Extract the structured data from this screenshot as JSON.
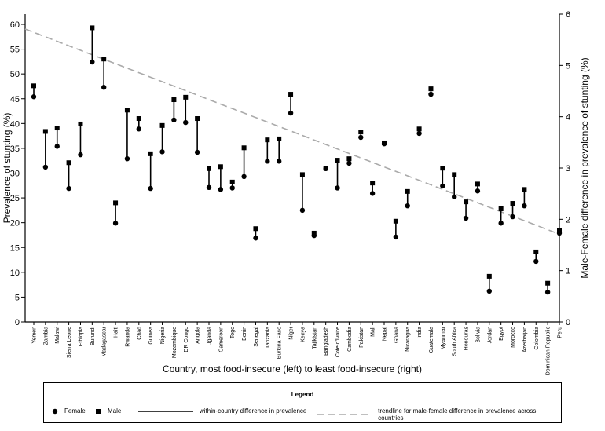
{
  "chart_data": {
    "type": "dot-range",
    "xlabel": "Country, most food-insecure (left) to least food-insecure (right)",
    "ylabel": "Prevalence of stunting (%)",
    "y2label": "Male-Female difference in prevalence of stunting (%)",
    "ylim": [
      0,
      60
    ],
    "y2lim": [
      0,
      6
    ],
    "yticks": [
      0,
      5,
      10,
      15,
      20,
      25,
      30,
      35,
      40,
      45,
      50,
      55,
      60
    ],
    "y2ticks": [
      0,
      1,
      2,
      3,
      4,
      5,
      6
    ],
    "categories": [
      "Yemen",
      "Zambia",
      "Malawi",
      "Sierra Leone",
      "Ethiopia",
      "Burundi",
      "Madagascar",
      "Haiti",
      "Rwanda",
      "Chad",
      "Guinea",
      "Nigeria",
      "Mozambique",
      "DR Congo",
      "Angola",
      "Uganda",
      "Cameroon",
      "Togo",
      "Benin",
      "Senegal",
      "Tanzania",
      "Burkina Faso",
      "Niger",
      "Kenya",
      "Tajikistan",
      "Bangladesh",
      "Cote d'Ivoire",
      "Cambodia",
      "Pakistan",
      "Mali",
      "Nepal",
      "Ghana",
      "Nicaragua",
      "India",
      "Guatemala",
      "Myanmar",
      "South Africa",
      "Honduras",
      "Bolivia",
      "Jordan",
      "Egypt",
      "Morocco",
      "Azerbaijan",
      "Colombia",
      "Dominican Republic",
      "Peru"
    ],
    "series": [
      {
        "name": "Female",
        "values": [
          45.4,
          31.2,
          35.4,
          26.9,
          33.7,
          52.4,
          47.3,
          19.9,
          32.9,
          38.9,
          26.9,
          34.3,
          40.7,
          40.2,
          34.2,
          27.1,
          26.7,
          27.0,
          29.3,
          16.9,
          32.4,
          32.4,
          42.1,
          22.5,
          17.4,
          30.9,
          27.0,
          32.0,
          37.2,
          25.9,
          35.9,
          17.1,
          23.4,
          38.0,
          45.9,
          27.4,
          25.2,
          20.9,
          26.4,
          6.2,
          19.9,
          21.2,
          23.4,
          12.2,
          6.0,
          17.9
        ]
      },
      {
        "name": "Male",
        "values": [
          47.6,
          38.4,
          39.1,
          32.1,
          39.9,
          59.3,
          53.0,
          24.0,
          42.7,
          41.0,
          33.9,
          39.6,
          44.8,
          45.3,
          41.0,
          30.9,
          31.3,
          28.2,
          35.1,
          18.8,
          36.7,
          36.9,
          45.9,
          29.7,
          17.9,
          31.0,
          32.6,
          32.9,
          38.3,
          28.0,
          36.1,
          20.3,
          26.3,
          38.9,
          47.0,
          31.0,
          29.7,
          24.2,
          27.8,
          9.2,
          22.8,
          23.9,
          26.7,
          14.1,
          7.8,
          18.5
        ]
      }
    ],
    "trendline": {
      "name": "trendline for male-female difference in prevalence across countries",
      "axis": "right",
      "start": 5.71,
      "end": 1.71
    },
    "legend": {
      "title": "Legend",
      "female": "Female",
      "male": "Male",
      "range": "within-country difference in prevalence",
      "trend": "trendline for male-female difference in prevalence across countries"
    }
  }
}
